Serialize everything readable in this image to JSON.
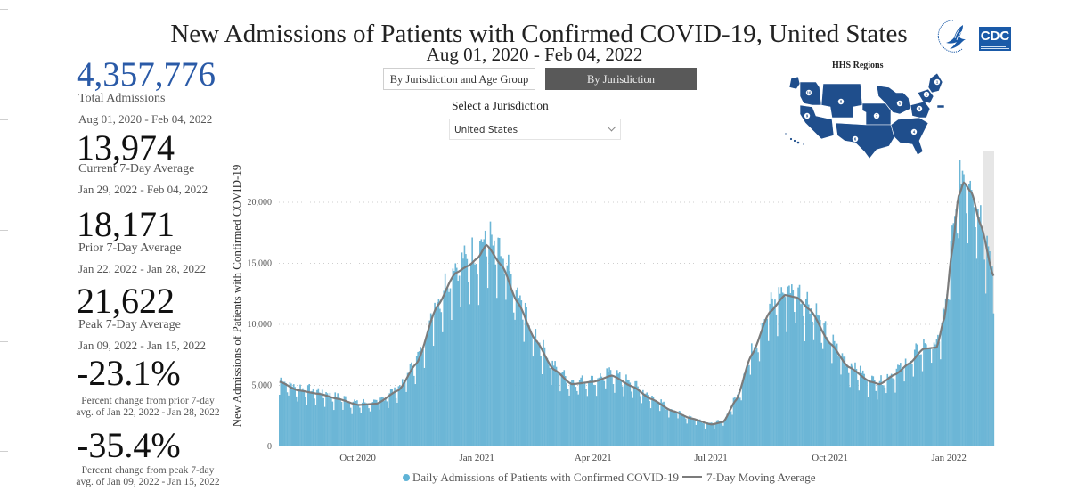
{
  "header": {
    "title": "New Admissions of Patients with Confirmed COVID-19, United States",
    "subtitle": "Aug 01, 2020 - Feb 04, 2022"
  },
  "logos": {
    "hhs": "hhs-eagle-seal-icon",
    "cdc": "CDC"
  },
  "kpis": [
    {
      "value": "4,357,776",
      "label": "Total Admissions",
      "dates": "Aug 01, 2020 - Feb 04, 2022",
      "color": "#2a5aa7"
    },
    {
      "value": "13,974",
      "label": "Current 7-Day Average",
      "dates": "Jan 29, 2022 - Feb 04, 2022"
    },
    {
      "value": "18,171",
      "label": "Prior 7-Day Average",
      "dates": "Jan 22, 2022 - Jan 28, 2022"
    },
    {
      "value": "21,622",
      "label": "Peak 7-Day Average",
      "dates": "Jan 09, 2022 - Jan 15, 2022"
    },
    {
      "value": "-23.1%",
      "note_line1": "Percent change from prior 7-day",
      "note_line2": "avg. of Jan 22, 2022 - Jan 28, 2022"
    },
    {
      "value": "-35.4%",
      "note_line1": "Percent change from peak 7-day",
      "note_line2": "avg. of Jan 09, 2022 - Jan 15, 2022"
    }
  ],
  "view_toggle": {
    "options": [
      "By Jurisdiction and Age Group",
      "By Jurisdiction"
    ],
    "selected": "By Jurisdiction"
  },
  "jurisdiction": {
    "label": "Select a Jurisdiction",
    "selected": "United States"
  },
  "hhs_map": {
    "title": "HHS Regions",
    "regions": [
      "1",
      "2",
      "3",
      "4",
      "5",
      "6",
      "7",
      "8",
      "9",
      "10"
    ]
  },
  "colors": {
    "bars": "#6cb6d6",
    "average_line": "#7b7b7b",
    "highlight_band": "#e6e6e6",
    "kpi_blue": "#2a5aa7",
    "toggle_active": "#595959"
  },
  "chart_data": {
    "type": "bar",
    "title": "New Admissions of Patients with Confirmed COVID-19, United States",
    "subtitle": "Aug 01, 2020 - Feb 04, 2022",
    "xlabel": "",
    "ylabel": "New Admissions of Patients with Confirmed COVID-19",
    "x_range": [
      "2020-08-01",
      "2022-02-04"
    ],
    "ylim": [
      0,
      23500
    ],
    "y_ticks": [
      0,
      5000,
      10000,
      15000,
      20000
    ],
    "y_tick_labels": [
      "0",
      "5,000",
      "10,000",
      "15,000",
      "20,000"
    ],
    "x_ticks": [
      {
        "date": "2020-10-01",
        "label": "Oct 2020"
      },
      {
        "date": "2021-01-01",
        "label": "Jan 2021"
      },
      {
        "date": "2021-04-01",
        "label": "Apr 2021"
      },
      {
        "date": "2021-07-01",
        "label": "Jul 2021"
      },
      {
        "date": "2021-10-01",
        "label": "Oct 2021"
      },
      {
        "date": "2022-01-01",
        "label": "Jan 2022"
      }
    ],
    "grid": "horizontal-dotted",
    "legend_position": "bottom",
    "highlight_band": {
      "from": "2022-01-29",
      "to": "2022-02-04"
    },
    "series": [
      {
        "name": "Daily Admissions of Patients with Confirmed COVID-19",
        "type": "bar",
        "note": "daily values approximated from 7-day average anchors with weekly variation"
      },
      {
        "name": "7-Day Moving Average",
        "type": "line",
        "anchors": [
          {
            "date": "2020-08-01",
            "value": 5300
          },
          {
            "date": "2020-08-15",
            "value": 4600
          },
          {
            "date": "2020-09-01",
            "value": 4300
          },
          {
            "date": "2020-09-15",
            "value": 3900
          },
          {
            "date": "2020-10-01",
            "value": 3400
          },
          {
            "date": "2020-10-15",
            "value": 3500
          },
          {
            "date": "2020-11-01",
            "value": 4600
          },
          {
            "date": "2020-11-15",
            "value": 6800
          },
          {
            "date": "2020-12-01",
            "value": 11500
          },
          {
            "date": "2020-12-15",
            "value": 14200
          },
          {
            "date": "2020-12-25",
            "value": 14800
          },
          {
            "date": "2021-01-01",
            "value": 15400
          },
          {
            "date": "2021-01-08",
            "value": 16500
          },
          {
            "date": "2021-01-20",
            "value": 14800
          },
          {
            "date": "2021-02-01",
            "value": 11800
          },
          {
            "date": "2021-02-15",
            "value": 8700
          },
          {
            "date": "2021-03-01",
            "value": 6300
          },
          {
            "date": "2021-03-15",
            "value": 5100
          },
          {
            "date": "2021-04-01",
            "value": 5300
          },
          {
            "date": "2021-04-15",
            "value": 5800
          },
          {
            "date": "2021-05-01",
            "value": 4900
          },
          {
            "date": "2021-05-15",
            "value": 3900
          },
          {
            "date": "2021-06-01",
            "value": 2900
          },
          {
            "date": "2021-06-15",
            "value": 2300
          },
          {
            "date": "2021-07-01",
            "value": 1800
          },
          {
            "date": "2021-07-10",
            "value": 2000
          },
          {
            "date": "2021-07-20",
            "value": 3800
          },
          {
            "date": "2021-08-01",
            "value": 7500
          },
          {
            "date": "2021-08-15",
            "value": 11000
          },
          {
            "date": "2021-08-27",
            "value": 12400
          },
          {
            "date": "2021-09-05",
            "value": 12200
          },
          {
            "date": "2021-09-15",
            "value": 11200
          },
          {
            "date": "2021-10-01",
            "value": 8400
          },
          {
            "date": "2021-10-15",
            "value": 6500
          },
          {
            "date": "2021-11-01",
            "value": 5300
          },
          {
            "date": "2021-11-08",
            "value": 5100
          },
          {
            "date": "2021-11-20",
            "value": 5900
          },
          {
            "date": "2021-12-01",
            "value": 6800
          },
          {
            "date": "2021-12-12",
            "value": 8000
          },
          {
            "date": "2021-12-22",
            "value": 8100
          },
          {
            "date": "2021-12-28",
            "value": 10500
          },
          {
            "date": "2022-01-03",
            "value": 16000
          },
          {
            "date": "2022-01-08",
            "value": 20500
          },
          {
            "date": "2022-01-12",
            "value": 21622
          },
          {
            "date": "2022-01-18",
            "value": 20800
          },
          {
            "date": "2022-01-25",
            "value": 18171
          },
          {
            "date": "2022-02-04",
            "value": 13974
          }
        ]
      }
    ],
    "legend": [
      "Daily Admissions of Patients with Confirmed COVID-19",
      "7-Day Moving Average"
    ]
  }
}
